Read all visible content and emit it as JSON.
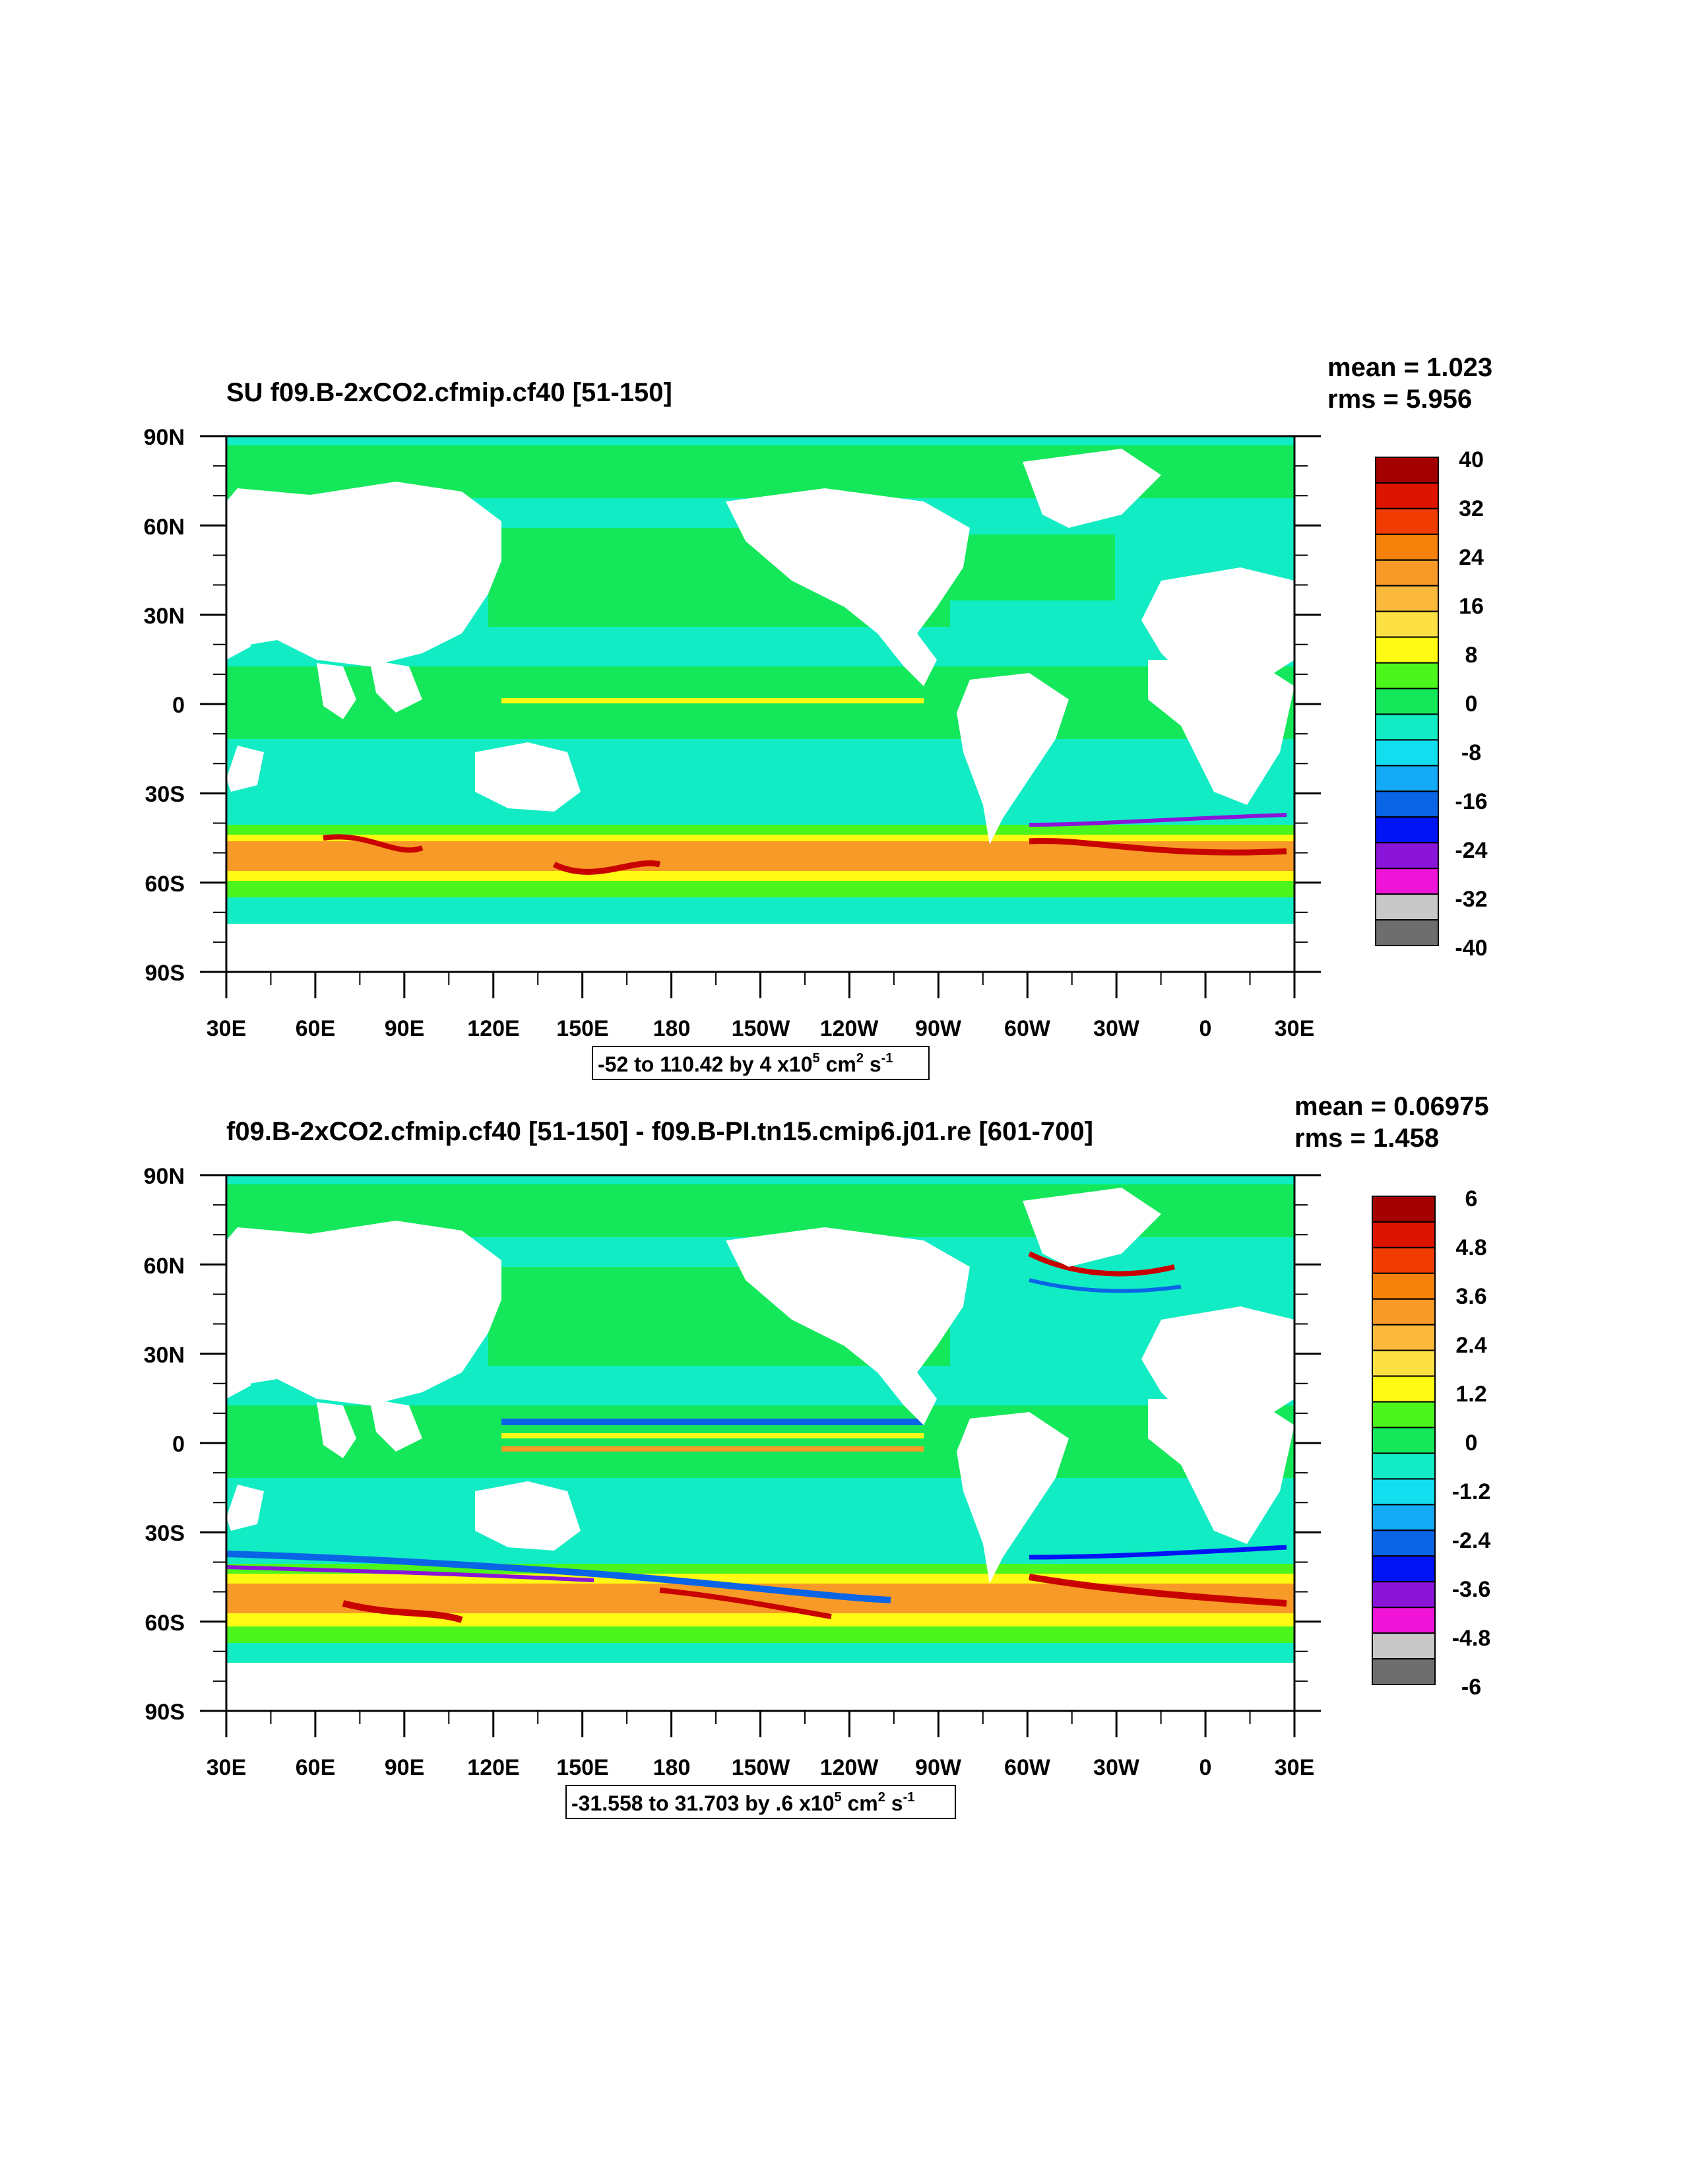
{
  "panels": [
    {
      "title": "SU f09.B-2xCO2.cfmip.cf40 [51-150]",
      "mean_label": "mean = 1.023",
      "rms_label": "rms = 5.956",
      "colorbar_labels": [
        "40",
        "32",
        "24",
        "16",
        "8",
        "0",
        "-8",
        "-16",
        "-24",
        "-32",
        "-40"
      ],
      "range_label": "-52 to 110.42 by 4 x10",
      "range_exp": "5",
      "range_unit": " cm",
      "range_unit_exp": "2",
      "range_s": " s",
      "range_s_exp": "-1"
    },
    {
      "title": "f09.B-2xCO2.cfmip.cf40 [51-150] - f09.B-PI.tn15.cmip6.j01.re [601-700]",
      "mean_label": "mean = 0.06975",
      "rms_label": "rms = 1.458",
      "colorbar_labels": [
        "6",
        "4.8",
        "3.6",
        "2.4",
        "1.2",
        "0",
        "-1.2",
        "-2.4",
        "-3.6",
        "-4.8",
        "-6"
      ],
      "range_label": "-31.558 to 31.703 by .6 x10",
      "range_exp": "5",
      "range_unit": " cm",
      "range_unit_exp": "2",
      "range_s": " s",
      "range_s_exp": "-1"
    }
  ],
  "lat_labels": [
    "90N",
    "60N",
    "30N",
    "0",
    "30S",
    "60S",
    "90S"
  ],
  "lon_labels": [
    "30E",
    "60E",
    "90E",
    "120E",
    "150E",
    "180",
    "150W",
    "120W",
    "90W",
    "60W",
    "30W",
    "0",
    "30E"
  ],
  "colorbar_colors": [
    "#a50000",
    "#dc1400",
    "#f03c00",
    "#f5820a",
    "#f79a28",
    "#fbb93c",
    "#fde043",
    "#fffa14",
    "#4cf51c",
    "#14e85a",
    "#12ecc4",
    "#12def0",
    "#14aaf5",
    "#0a64e6",
    "#0014f5",
    "#8a14d8",
    "#f014d8",
    "#c8c8c8",
    "#6e6e6e"
  ],
  "map_colors": {
    "land": "#ffffff",
    "ocean_base": "#12ecc4",
    "green": "#14e85a",
    "lime": "#4cf51c",
    "yellow": "#fffa14",
    "orange": "#f79a28",
    "red": "#c80000",
    "blue": "#0a64e6",
    "purple": "#8a14d8"
  }
}
